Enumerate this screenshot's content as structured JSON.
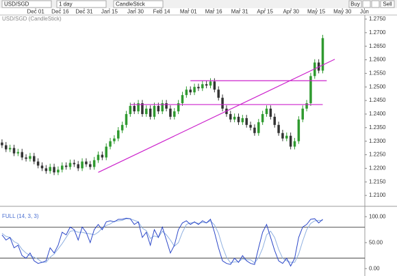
{
  "toolbar": {
    "symbol": "USD/SGD",
    "interval": "1 day",
    "chart_style": "CandleStick",
    "buy": "Buy",
    "sell": "Sell"
  },
  "chart_data": [
    {
      "type": "candlestick",
      "title": "USD/SGD (CandleStick)",
      "xlim": [
        -0.5,
        90.5
      ],
      "xticks": [
        {
          "value": 8.4,
          "label": "Dec 01"
        },
        {
          "value": 14.5,
          "label": "Dec 16"
        },
        {
          "value": 20.5,
          "label": "Dec 31"
        },
        {
          "value": 26.8,
          "label": "Jan 15"
        },
        {
          "value": 33.3,
          "label": "Jan 30"
        },
        {
          "value": 39.8,
          "label": "Feb 14"
        },
        {
          "value": 46.5,
          "label": "Mar 01"
        },
        {
          "value": 52.8,
          "label": "Mar 16"
        },
        {
          "value": 59.3,
          "label": "Mar 31"
        },
        {
          "value": 65.6,
          "label": "Apr 15"
        },
        {
          "value": 72.1,
          "label": "Apr 30"
        },
        {
          "value": 78.4,
          "label": "May 15"
        },
        {
          "value": 84.9,
          "label": "May 30"
        },
        {
          "value": 90.4,
          "label": "Jun"
        }
      ],
      "ylim": [
        1.2065,
        1.2765
      ],
      "yticks": [
        {
          "value": 1.21,
          "label": "1.2100"
        },
        {
          "value": 1.215,
          "label": "1.2150"
        },
        {
          "value": 1.22,
          "label": "1.2200"
        },
        {
          "value": 1.225,
          "label": "1.2250"
        },
        {
          "value": 1.23,
          "label": "1.2300"
        },
        {
          "value": 1.235,
          "label": "1.2350"
        },
        {
          "value": 1.24,
          "label": "1.2400"
        },
        {
          "value": 1.245,
          "label": "1.2450"
        },
        {
          "value": 1.25,
          "label": "1.2500"
        },
        {
          "value": 1.255,
          "label": "1.2550"
        },
        {
          "value": 1.26,
          "label": "1.2600"
        },
        {
          "value": 1.265,
          "label": "1.2650"
        },
        {
          "value": 1.27,
          "label": "1.2700"
        },
        {
          "value": 1.275,
          "label": "1.2750"
        }
      ],
      "open": [
        1.2295,
        1.2285,
        1.227,
        1.2275,
        1.2255,
        1.226,
        1.224,
        1.2235,
        1.2245,
        1.2225,
        1.221,
        1.22,
        1.219,
        1.2205,
        1.2185,
        1.2195,
        1.221,
        1.2205,
        1.222,
        1.2215,
        1.22,
        1.2225,
        1.2215,
        1.2205,
        1.223,
        1.225,
        1.224,
        1.228,
        1.23,
        1.231,
        1.234,
        1.236,
        1.24,
        1.243,
        1.241,
        1.244,
        1.24,
        1.242,
        1.239,
        1.243,
        1.241,
        1.244,
        1.242,
        1.239,
        1.241,
        1.244,
        1.247,
        1.249,
        1.248,
        1.25,
        1.2495,
        1.251,
        1.2505,
        1.252,
        1.249,
        1.246,
        1.242,
        1.24,
        1.238,
        1.239,
        1.237,
        1.2385,
        1.236,
        1.235,
        1.233,
        1.237,
        1.24,
        1.242,
        1.239,
        1.236,
        1.233,
        1.231,
        1.232,
        1.228,
        1.23,
        1.238,
        1.242,
        1.244,
        1.254,
        1.259,
        1.256
      ],
      "high": [
        1.2307,
        1.2297,
        1.2287,
        1.2287,
        1.2272,
        1.2272,
        1.2252,
        1.2257,
        1.2257,
        1.2237,
        1.2222,
        1.2212,
        1.2217,
        1.2217,
        1.2207,
        1.2222,
        1.2222,
        1.2232,
        1.2232,
        1.2227,
        1.2237,
        1.2237,
        1.2227,
        1.2242,
        1.2262,
        1.2262,
        1.2292,
        1.2312,
        1.2322,
        1.2352,
        1.2372,
        1.2412,
        1.2442,
        1.2442,
        1.2452,
        1.2452,
        1.2432,
        1.2432,
        1.2442,
        1.2442,
        1.2452,
        1.2452,
        1.2432,
        1.2422,
        1.2452,
        1.2482,
        1.2502,
        1.2502,
        1.2512,
        1.2512,
        1.2522,
        1.2522,
        1.2532,
        1.2532,
        1.2502,
        1.2472,
        1.2432,
        1.2412,
        1.2402,
        1.2402,
        1.2397,
        1.2397,
        1.2372,
        1.2362,
        1.2382,
        1.2412,
        1.2432,
        1.2432,
        1.2402,
        1.2372,
        1.2342,
        1.2332,
        1.2332,
        1.2312,
        1.2392,
        1.2432,
        1.2452,
        1.2552,
        1.2602,
        1.2602,
        1.2692
      ],
      "low": [
        1.2275,
        1.226,
        1.226,
        1.2245,
        1.2245,
        1.223,
        1.2225,
        1.2225,
        1.2215,
        1.22,
        1.219,
        1.218,
        1.218,
        1.2175,
        1.2175,
        1.2185,
        1.2195,
        1.2195,
        1.2205,
        1.219,
        1.219,
        1.2205,
        1.2195,
        1.2195,
        1.222,
        1.223,
        1.223,
        1.227,
        1.229,
        1.23,
        1.233,
        1.235,
        1.239,
        1.24,
        1.24,
        1.239,
        1.239,
        1.238,
        1.238,
        1.24,
        1.24,
        1.241,
        1.238,
        1.238,
        1.24,
        1.243,
        1.246,
        1.247,
        1.247,
        1.2485,
        1.2485,
        1.2495,
        1.2495,
        1.248,
        1.245,
        1.241,
        1.239,
        1.237,
        1.237,
        1.236,
        1.236,
        1.235,
        1.234,
        1.232,
        1.232,
        1.236,
        1.239,
        1.238,
        1.235,
        1.232,
        1.23,
        1.23,
        1.227,
        1.227,
        1.229,
        1.237,
        1.241,
        1.243,
        1.253,
        1.255,
        1.255
      ],
      "close": [
        1.2285,
        1.227,
        1.2275,
        1.2255,
        1.226,
        1.224,
        1.2235,
        1.2245,
        1.2225,
        1.221,
        1.22,
        1.219,
        1.2205,
        1.2185,
        1.2195,
        1.221,
        1.2205,
        1.222,
        1.2215,
        1.22,
        1.2225,
        1.2215,
        1.2205,
        1.223,
        1.225,
        1.224,
        1.228,
        1.23,
        1.231,
        1.234,
        1.236,
        1.24,
        1.243,
        1.241,
        1.244,
        1.24,
        1.242,
        1.239,
        1.243,
        1.241,
        1.244,
        1.242,
        1.239,
        1.241,
        1.244,
        1.247,
        1.249,
        1.248,
        1.25,
        1.2495,
        1.251,
        1.2505,
        1.252,
        1.249,
        1.246,
        1.242,
        1.24,
        1.238,
        1.239,
        1.237,
        1.2385,
        1.236,
        1.235,
        1.233,
        1.237,
        1.24,
        1.242,
        1.239,
        1.236,
        1.233,
        1.231,
        1.232,
        1.228,
        1.23,
        1.238,
        1.242,
        1.244,
        1.254,
        1.259,
        1.256,
        1.268
      ],
      "up_color": "#2f9a2f",
      "down_color": "#333333",
      "drawing_color": "#cc22cc",
      "drawings": [
        {
          "x": [
            24,
            83
          ],
          "y": [
            1.2185,
            1.2602
          ]
        },
        {
          "x": [
            32,
            80
          ],
          "y": [
            1.2435,
            1.2435
          ]
        },
        {
          "x": [
            47,
            81
          ],
          "y": [
            1.2523,
            1.2523
          ]
        }
      ]
    },
    {
      "type": "line",
      "title": "FULL (14, 3, 3)",
      "xlim": [
        -0.5,
        90.5
      ],
      "ylim": [
        -9,
        116
      ],
      "yticks": [
        {
          "value": 0,
          "label": "0.00"
        },
        {
          "value": 50,
          "label": "50.00"
        },
        {
          "value": 100,
          "label": "100.00"
        }
      ],
      "levels": [
        80,
        20
      ],
      "level_color": "#222222",
      "series": [
        {
          "color": "#2a46c8",
          "values": [
            65,
            55,
            60,
            40,
            45,
            25,
            20,
            30,
            15,
            10,
            12,
            15,
            40,
            30,
            45,
            70,
            65,
            80,
            75,
            55,
            80,
            70,
            50,
            75,
            85,
            75,
            90,
            92,
            90,
            95,
            95,
            97,
            96,
            85,
            90,
            60,
            70,
            45,
            75,
            60,
            80,
            55,
            30,
            45,
            75,
            88,
            92,
            85,
            90,
            85,
            92,
            88,
            95,
            70,
            40,
            15,
            10,
            8,
            20,
            12,
            25,
            15,
            10,
            8,
            40,
            70,
            85,
            60,
            35,
            15,
            10,
            20,
            5,
            20,
            60,
            80,
            85,
            95,
            96,
            88,
            95
          ]
        },
        {
          "color": "#8fb0e0",
          "values": [
            68,
            62,
            60,
            52,
            48,
            37,
            30,
            25,
            22,
            18,
            12,
            12,
            22,
            28,
            38,
            48,
            60,
            72,
            73,
            70,
            70,
            68,
            67,
            65,
            70,
            78,
            83,
            86,
            91,
            92,
            93,
            96,
            96,
            93,
            90,
            78,
            73,
            58,
            63,
            60,
            72,
            65,
            55,
            43,
            50,
            70,
            85,
            88,
            89,
            87,
            89,
            88,
            92,
            84,
            68,
            42,
            22,
            11,
            13,
            13,
            19,
            17,
            17,
            11,
            21,
            39,
            65,
            72,
            60,
            37,
            20,
            15,
            12,
            12,
            28,
            53,
            75,
            87,
            92,
            93,
            93
          ]
        }
      ]
    }
  ]
}
